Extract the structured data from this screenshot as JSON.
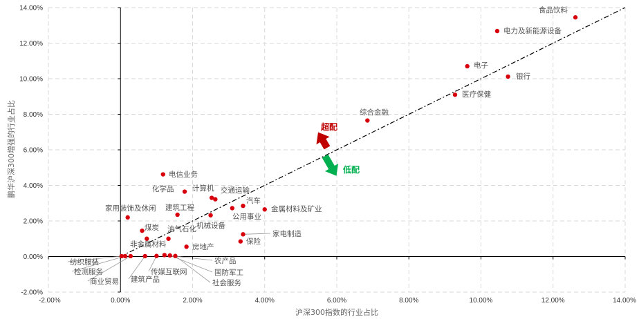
{
  "chart_data": {
    "type": "scatter",
    "xlabel": "沪深300指数的行业占比",
    "ylabel": "鹏华沪深300增强的行业占比",
    "xlim": [
      -0.02,
      0.14
    ],
    "ylim": [
      -0.02,
      0.14
    ],
    "x_ticks": [
      "-2.00%",
      "0.00%",
      "2.00%",
      "4.00%",
      "6.00%",
      "8.00%",
      "10.00%",
      "12.00%",
      "14.00%"
    ],
    "y_ticks": [
      "-2.00%",
      "0.00%",
      "2.00%",
      "4.00%",
      "6.00%",
      "8.00%",
      "10.00%",
      "12.00%",
      "14.00%"
    ],
    "grid": true,
    "reference_line": "y = x",
    "point_color": "#d9000d",
    "points": [
      {
        "label": "食品饮料",
        "x": 0.1262,
        "y": 0.1345
      },
      {
        "label": "电力及新能源设备",
        "x": 0.1045,
        "y": 0.1268
      },
      {
        "label": "电子",
        "x": 0.0962,
        "y": 0.107
      },
      {
        "label": "银行",
        "x": 0.1075,
        "y": 0.1012
      },
      {
        "label": "医疗保健",
        "x": 0.0928,
        "y": 0.091
      },
      {
        "label": "综合金融",
        "x": 0.0685,
        "y": 0.0765
      },
      {
        "label": "电信业务",
        "x": 0.0118,
        "y": 0.0462
      },
      {
        "label": "化学品",
        "x": 0.0178,
        "y": 0.0365
      },
      {
        "label": "计算机",
        "x": 0.0253,
        "y": 0.033
      },
      {
        "label": "交通运输",
        "x": 0.0263,
        "y": 0.0322
      },
      {
        "label": "汽车",
        "x": 0.034,
        "y": 0.0285
      },
      {
        "label": "金属材料及矿业",
        "x": 0.04,
        "y": 0.0265
      },
      {
        "label": "建筑工程",
        "x": 0.0158,
        "y": 0.0235
      },
      {
        "label": "公用事业",
        "x": 0.031,
        "y": 0.0272
      },
      {
        "label": "家用装饰及休闲",
        "x": 0.002,
        "y": 0.022
      },
      {
        "label": "机械设备",
        "x": 0.025,
        "y": 0.0232
      },
      {
        "label": "煤炭",
        "x": 0.006,
        "y": 0.0145
      },
      {
        "label": "油气石化",
        "x": 0.0133,
        "y": 0.01
      },
      {
        "label": "家电制造",
        "x": 0.034,
        "y": 0.0125
      },
      {
        "label": "保险",
        "x": 0.0333,
        "y": 0.0085
      },
      {
        "label": "非金属材料",
        "x": 0.0073,
        "y": 0.01
      },
      {
        "label": "房地产",
        "x": 0.0183,
        "y": 0.0055
      },
      {
        "label": "纺织服装",
        "x": 0.0003,
        "y": 0.0002
      },
      {
        "label": "检测服务",
        "x": 0.0013,
        "y": 0.0002
      },
      {
        "label": "商业贸易",
        "x": 0.0028,
        "y": 0.0002
      },
      {
        "label": "建筑产品",
        "x": 0.0068,
        "y": 0.0002
      },
      {
        "label": "传媒互联网",
        "x": 0.01,
        "y": 0.0003
      },
      {
        "label": "农产品",
        "x": 0.0122,
        "y": 0.0008
      },
      {
        "label": "国防军工",
        "x": 0.0137,
        "y": 0.0006
      },
      {
        "label": "社会服务",
        "x": 0.0152,
        "y": 0.0003
      }
    ],
    "annotations": [
      {
        "text": "超配",
        "color": "#c00000"
      },
      {
        "text": "低配",
        "color": "#00b050"
      }
    ]
  }
}
